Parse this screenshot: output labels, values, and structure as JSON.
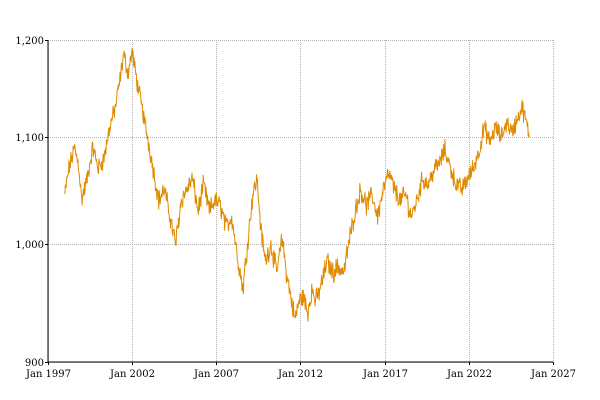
{
  "chart_data": {
    "type": "line",
    "title": "",
    "xlabel": "",
    "ylabel": "",
    "x_axis": {
      "scale": "date",
      "min": "1997-01-01",
      "max": "2027-01-01",
      "ticks": [
        {
          "value": "1997-01-01",
          "label": "Jan 1997"
        },
        {
          "value": "2002-01-01",
          "label": "Jan 2002"
        },
        {
          "value": "2007-01-01",
          "label": "Jan 2007"
        },
        {
          "value": "2012-01-01",
          "label": "Jan 2012"
        },
        {
          "value": "2017-01-01",
          "label": "Jan 2017"
        },
        {
          "value": "2022-01-01",
          "label": "Jan 2022"
        },
        {
          "value": "2027-01-01",
          "label": "Jan 2027"
        }
      ]
    },
    "y_axis": {
      "scale": "log",
      "min": 900,
      "max": 1200,
      "ticks": [
        {
          "value": 900,
          "label": "900"
        },
        {
          "value": 1000,
          "label": "1,000"
        },
        {
          "value": 1100,
          "label": "1,100"
        },
        {
          "value": 1200,
          "label": "1,200"
        }
      ]
    },
    "grid": true,
    "series": [
      {
        "color": "#e08a00",
        "points": [
          [
            "1998-01-01",
            1045
          ],
          [
            "1998-04-01",
            1070
          ],
          [
            "1998-08-01",
            1090
          ],
          [
            "1998-11-01",
            1072
          ],
          [
            "1999-01-01",
            1040
          ],
          [
            "1999-05-01",
            1060
          ],
          [
            "1999-09-01",
            1090
          ],
          [
            "2000-01-01",
            1070
          ],
          [
            "2000-05-01",
            1080
          ],
          [
            "2000-09-01",
            1110
          ],
          [
            "2001-01-01",
            1130
          ],
          [
            "2001-04-01",
            1155
          ],
          [
            "2001-07-01",
            1185
          ],
          [
            "2001-10-01",
            1165
          ],
          [
            "2002-01-01",
            1188
          ],
          [
            "2002-04-01",
            1160
          ],
          [
            "2002-08-01",
            1130
          ],
          [
            "2002-12-01",
            1100
          ],
          [
            "2003-04-01",
            1070
          ],
          [
            "2003-08-01",
            1040
          ],
          [
            "2003-12-01",
            1050
          ],
          [
            "2004-04-01",
            1025
          ],
          [
            "2004-08-01",
            1000
          ],
          [
            "2004-12-01",
            1040
          ],
          [
            "2005-04-01",
            1050
          ],
          [
            "2005-08-01",
            1060
          ],
          [
            "2005-12-01",
            1030
          ],
          [
            "2006-04-01",
            1055
          ],
          [
            "2006-08-01",
            1030
          ],
          [
            "2006-12-01",
            1040
          ],
          [
            "2007-04-01",
            1035
          ],
          [
            "2007-08-01",
            1015
          ],
          [
            "2007-12-01",
            1025
          ],
          [
            "2008-04-01",
            990
          ],
          [
            "2008-08-01",
            960
          ],
          [
            "2008-12-01",
            1010
          ],
          [
            "2009-03-01",
            1045
          ],
          [
            "2009-06-01",
            1060
          ],
          [
            "2009-09-01",
            1010
          ],
          [
            "2009-12-01",
            985
          ],
          [
            "2010-04-01",
            1000
          ],
          [
            "2010-08-01",
            975
          ],
          [
            "2010-12-01",
            1005
          ],
          [
            "2011-03-01",
            975
          ],
          [
            "2011-06-01",
            955
          ],
          [
            "2011-09-01",
            935
          ],
          [
            "2011-12-01",
            950
          ],
          [
            "2012-03-01",
            955
          ],
          [
            "2012-06-01",
            940
          ],
          [
            "2012-09-01",
            960
          ],
          [
            "2012-12-01",
            950
          ],
          [
            "2013-04-01",
            965
          ],
          [
            "2013-08-01",
            985
          ],
          [
            "2013-12-01",
            975
          ],
          [
            "2014-04-01",
            980
          ],
          [
            "2014-08-01",
            975
          ],
          [
            "2014-12-01",
            1005
          ],
          [
            "2015-04-01",
            1030
          ],
          [
            "2015-08-01",
            1050
          ],
          [
            "2015-12-01",
            1035
          ],
          [
            "2016-04-01",
            1045
          ],
          [
            "2016-08-01",
            1025
          ],
          [
            "2016-12-01",
            1050
          ],
          [
            "2017-04-01",
            1065
          ],
          [
            "2017-08-01",
            1050
          ],
          [
            "2017-12-01",
            1040
          ],
          [
            "2018-04-01",
            1045
          ],
          [
            "2018-08-01",
            1025
          ],
          [
            "2018-12-01",
            1040
          ],
          [
            "2019-04-01",
            1060
          ],
          [
            "2019-08-01",
            1055
          ],
          [
            "2019-12-01",
            1068
          ],
          [
            "2020-04-01",
            1075
          ],
          [
            "2020-08-01",
            1088
          ],
          [
            "2020-12-01",
            1070
          ],
          [
            "2021-04-01",
            1055
          ],
          [
            "2021-08-01",
            1050
          ],
          [
            "2021-12-01",
            1060
          ],
          [
            "2022-04-01",
            1070
          ],
          [
            "2022-08-01",
            1085
          ],
          [
            "2022-12-01",
            1110
          ],
          [
            "2023-04-01",
            1095
          ],
          [
            "2023-08-01",
            1110
          ],
          [
            "2023-12-01",
            1100
          ],
          [
            "2024-04-01",
            1115
          ],
          [
            "2024-08-01",
            1105
          ],
          [
            "2024-12-01",
            1120
          ],
          [
            "2025-03-01",
            1130
          ],
          [
            "2025-06-01",
            1115
          ],
          [
            "2025-08-01",
            1100
          ]
        ]
      }
    ]
  }
}
